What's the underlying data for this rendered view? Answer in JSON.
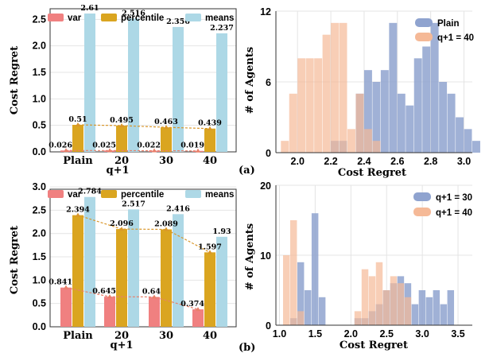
{
  "chart_data": [
    {
      "id": "a_bar",
      "type": "bar",
      "xlabel": "q+1",
      "ylabel": "Cost Regret",
      "categories": [
        "Plain",
        "20",
        "30",
        "40"
      ],
      "ylim": [
        0,
        2.7
      ],
      "yticks": [
        0.0,
        0.5,
        1.0,
        1.5,
        2.0,
        2.5
      ],
      "ytick_labels": [
        "0.0",
        "0.5",
        "1.0",
        "1.5",
        "2.0",
        "2.5"
      ],
      "series": [
        {
          "name": "var",
          "color": "#f08080",
          "values": [
            0.026,
            0.025,
            0.022,
            0.019
          ],
          "labels": [
            "0.026",
            "0.025",
            "0.022",
            "0.019"
          ]
        },
        {
          "name": "percentile",
          "color": "#daa520",
          "values": [
            0.51,
            0.495,
            0.463,
            0.439
          ],
          "labels": [
            "0.51",
            "0.495",
            "0.463",
            "0.439"
          ]
        },
        {
          "name": "means",
          "color": "#add8e6",
          "values": [
            2.61,
            2.516,
            2.356,
            2.237
          ],
          "labels": [
            "2.61",
            "2.516",
            "2.356",
            "2.237"
          ]
        }
      ],
      "panel_tag": "(a)"
    },
    {
      "id": "a_hist",
      "type": "histogram",
      "xlabel": "Cost Regret",
      "ylabel": "# of Agents",
      "xlim": [
        1.87,
        3.05
      ],
      "ylim": [
        0,
        12
      ],
      "xticks": [
        2.0,
        2.2,
        2.4,
        2.6,
        2.8,
        3.0
      ],
      "xtick_labels": [
        "2.0",
        "2.2",
        "2.4",
        "2.6",
        "2.8",
        "3.0"
      ],
      "yticks": [
        0,
        6,
        12
      ],
      "ytick_labels": [
        "0",
        "6",
        "12"
      ],
      "bin_start": 1.9,
      "bin_width": 0.05,
      "series": [
        {
          "name": "Plain",
          "color": "#8fa3cf",
          "counts": [
            0,
            0,
            0,
            0,
            0,
            0,
            1,
            1,
            0,
            5,
            7,
            6,
            7,
            11,
            5,
            4,
            8,
            9,
            11,
            6,
            5,
            3,
            2,
            1
          ]
        },
        {
          "name": "q+1 = 40",
          "color": "#f5b997",
          "counts": [
            1,
            5,
            8,
            8,
            8,
            10,
            11,
            11,
            2,
            5,
            2,
            1,
            0,
            0,
            0,
            0,
            0,
            0,
            0,
            0,
            0,
            0,
            0,
            0
          ]
        }
      ]
    },
    {
      "id": "b_bar",
      "type": "bar",
      "xlabel": "q+1",
      "ylabel": "Cost Regret",
      "categories": [
        "Plain",
        "20",
        "30",
        "40"
      ],
      "ylim": [
        0,
        2.95
      ],
      "yticks": [
        0.0,
        0.5,
        1.0,
        1.5,
        2.0,
        2.5,
        3.0
      ],
      "ytick_labels": [
        "0.0",
        "0.5",
        "1.0",
        "1.5",
        "2.0",
        "2.5",
        "3.0"
      ],
      "series": [
        {
          "name": "var",
          "color": "#f08080",
          "values": [
            0.841,
            0.645,
            0.64,
            0.374
          ],
          "labels": [
            "0.841",
            "0.645",
            "0.64",
            "0.374"
          ]
        },
        {
          "name": "percentile",
          "color": "#daa520",
          "values": [
            2.394,
            2.096,
            2.089,
            1.597
          ],
          "labels": [
            "2.394",
            "2.096",
            "2.089",
            "1.597"
          ]
        },
        {
          "name": "means",
          "color": "#add8e6",
          "values": [
            2.784,
            2.517,
            2.416,
            1.93
          ],
          "labels": [
            "2.784",
            "2.517",
            "2.416",
            "1.93"
          ]
        }
      ],
      "panel_tag": "(b)"
    },
    {
      "id": "b_hist",
      "type": "histogram",
      "xlabel": "Cost Regret",
      "ylabel": "# of Agents",
      "xlim": [
        0.95,
        3.7
      ],
      "ylim": [
        0,
        20
      ],
      "xticks": [
        1.0,
        1.5,
        2.0,
        2.5,
        3.0,
        3.5
      ],
      "xtick_labels": [
        "1.0",
        "1.5",
        "2.0",
        "2.5",
        "3.0",
        "3.5"
      ],
      "yticks": [
        0,
        10,
        20
      ],
      "ytick_labels": [
        "0",
        "10",
        "20"
      ],
      "bin_start": 1.05,
      "bin_width": 0.1,
      "series": [
        {
          "name": "q+1 = 30",
          "color": "#8fa3cf",
          "counts": [
            0,
            1,
            9,
            5,
            16,
            4,
            0,
            0,
            0,
            0,
            1,
            1,
            2,
            3,
            5,
            6,
            7,
            6,
            3,
            5,
            4,
            5,
            3,
            5,
            0
          ]
        },
        {
          "name": "q+1 = 40",
          "color": "#f5b997",
          "counts": [
            10,
            15,
            2,
            0,
            0,
            0,
            0,
            0,
            0,
            0,
            2,
            8,
            7,
            9,
            5,
            7,
            6,
            4,
            0,
            0,
            0,
            0,
            0,
            0,
            0
          ]
        }
      ]
    }
  ]
}
